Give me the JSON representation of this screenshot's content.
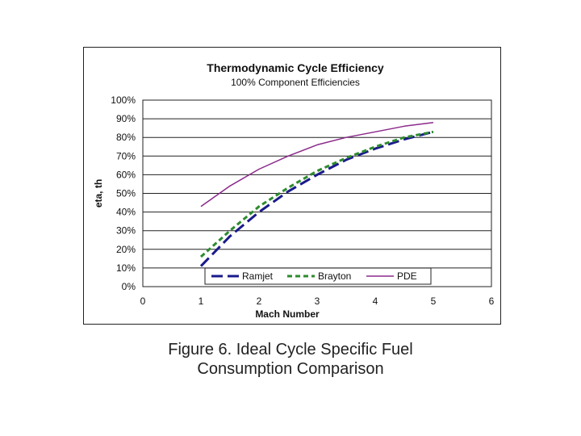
{
  "chart_data": {
    "type": "line",
    "title": "Thermodynamic Cycle Efficiency",
    "subtitle": "100% Component Efficiencies",
    "xlabel": "Mach Number",
    "ylabel": "eta, th",
    "xlim": [
      0,
      6
    ],
    "ylim": [
      0,
      100
    ],
    "x_ticks": [
      "0",
      "1",
      "2",
      "3",
      "4",
      "5",
      "6"
    ],
    "y_ticks": [
      "0%",
      "10%",
      "20%",
      "30%",
      "40%",
      "50%",
      "60%",
      "70%",
      "80%",
      "90%",
      "100%"
    ],
    "grid": "horizontal",
    "legend_position": "bottom-inside",
    "series": [
      {
        "name": "Ramjet",
        "color": "#1a1a8c",
        "style": "long-dash",
        "x": [
          1.0,
          1.5,
          2.0,
          2.5,
          3.0,
          3.5,
          4.0,
          4.5,
          5.0
        ],
        "y": [
          11,
          27,
          40,
          51,
          60,
          68,
          74,
          79,
          83
        ]
      },
      {
        "name": "Brayton",
        "color": "#2e8b2e",
        "style": "short-dash",
        "x": [
          1.0,
          1.5,
          2.0,
          2.5,
          3.0,
          3.5,
          4.0,
          4.5,
          5.0
        ],
        "y": [
          16,
          30,
          43,
          53,
          62,
          69,
          75,
          80,
          83
        ]
      },
      {
        "name": "PDE",
        "color": "#8b2a8b",
        "style": "solid",
        "x": [
          1.0,
          1.5,
          2.0,
          2.5,
          3.0,
          3.5,
          4.0,
          4.5,
          5.0
        ],
        "y": [
          43,
          54,
          63,
          70,
          76,
          80,
          83,
          86,
          88
        ]
      }
    ]
  },
  "caption": {
    "line1": "Figure 6.  Ideal Cycle Specific Fuel",
    "line2": "Consumption Comparison"
  }
}
